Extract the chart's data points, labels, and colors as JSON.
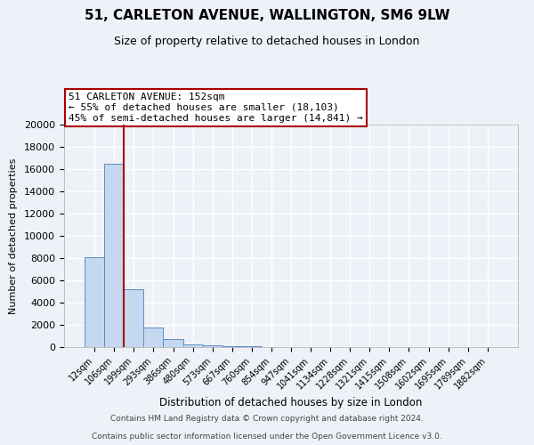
{
  "title": "51, CARLETON AVENUE, WALLINGTON, SM6 9LW",
  "subtitle": "Size of property relative to detached houses in London",
  "xlabel": "Distribution of detached houses by size in London",
  "ylabel": "Number of detached properties",
  "bar_labels": [
    "12sqm",
    "106sqm",
    "199sqm",
    "293sqm",
    "386sqm",
    "480sqm",
    "573sqm",
    "667sqm",
    "760sqm",
    "854sqm",
    "947sqm",
    "1041sqm",
    "1134sqm",
    "1228sqm",
    "1321sqm",
    "1415sqm",
    "1508sqm",
    "1602sqm",
    "1695sqm",
    "1789sqm",
    "1882sqm"
  ],
  "bar_heights": [
    8100,
    16500,
    5200,
    1800,
    750,
    280,
    130,
    75,
    50,
    0,
    0,
    0,
    0,
    0,
    0,
    0,
    0,
    0,
    0,
    0,
    0
  ],
  "bar_color": "#c5d8f0",
  "bar_edge_color": "#5b8ec5",
  "ylim": [
    0,
    20000
  ],
  "yticks": [
    0,
    2000,
    4000,
    6000,
    8000,
    10000,
    12000,
    14000,
    16000,
    18000,
    20000
  ],
  "pct_smaller": 55,
  "n_smaller": 18103,
  "pct_larger": 45,
  "n_larger": 14841,
  "footer_line1": "Contains HM Land Registry data © Crown copyright and database right 2024.",
  "footer_line2": "Contains public sector information licensed under the Open Government Licence v3.0.",
  "background_color": "#eef2f8",
  "plot_bg_color": "#eef2f8",
  "grid_color": "#ffffff",
  "red_line_color": "#aa0000",
  "annotation_box_color": "#ffffff",
  "annotation_box_edge_color": "#aa0000"
}
